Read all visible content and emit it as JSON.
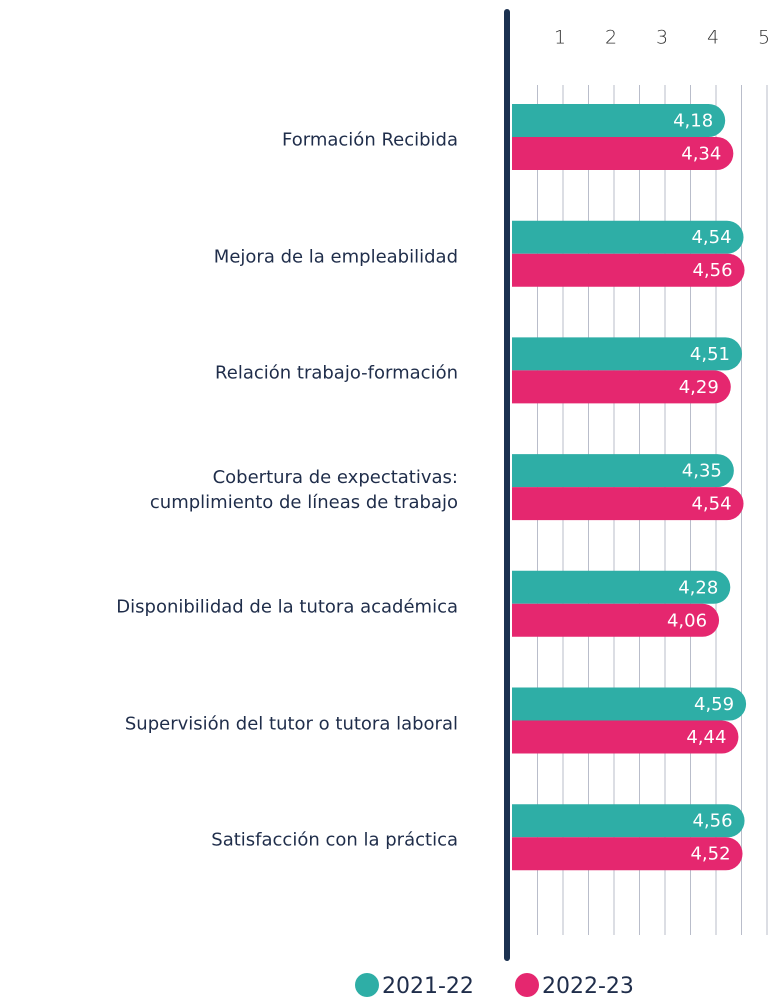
{
  "chart_data": {
    "type": "barh",
    "categories": [
      "Formación Recibida",
      "Mejora de la empleabilidad",
      "Relación trabajo-formación",
      "Cobertura de expectativas:\ncumplimiento de líneas de trabajo",
      "Disponibilidad de la tutora académica",
      "Supervisión del tutor o tutora laboral",
      "Satisfacción con la práctica"
    ],
    "series": [
      {
        "name": "2021-22",
        "color": "#2eaea6",
        "values": [
          4.18,
          4.54,
          4.51,
          4.35,
          4.28,
          4.59,
          4.56
        ],
        "value_labels": [
          "4,18",
          "4,54",
          "4,51",
          "4,35",
          "4,28",
          "4,59",
          "4,56"
        ]
      },
      {
        "name": "2022-23",
        "color": "#e5276f",
        "values": [
          4.34,
          4.56,
          4.29,
          4.54,
          4.06,
          4.44,
          4.52
        ],
        "value_labels": [
          "4,34",
          "4,56",
          "4,29",
          "4,54",
          "4,06",
          "4,44",
          "4,52"
        ]
      }
    ],
    "xlim": [
      0,
      5
    ],
    "xticks": [
      1,
      2,
      3,
      4,
      5
    ],
    "minor_xticks": [
      0.5,
      1.5,
      2.5,
      3.5,
      4.5
    ],
    "grid": true,
    "legend": "bottom"
  }
}
